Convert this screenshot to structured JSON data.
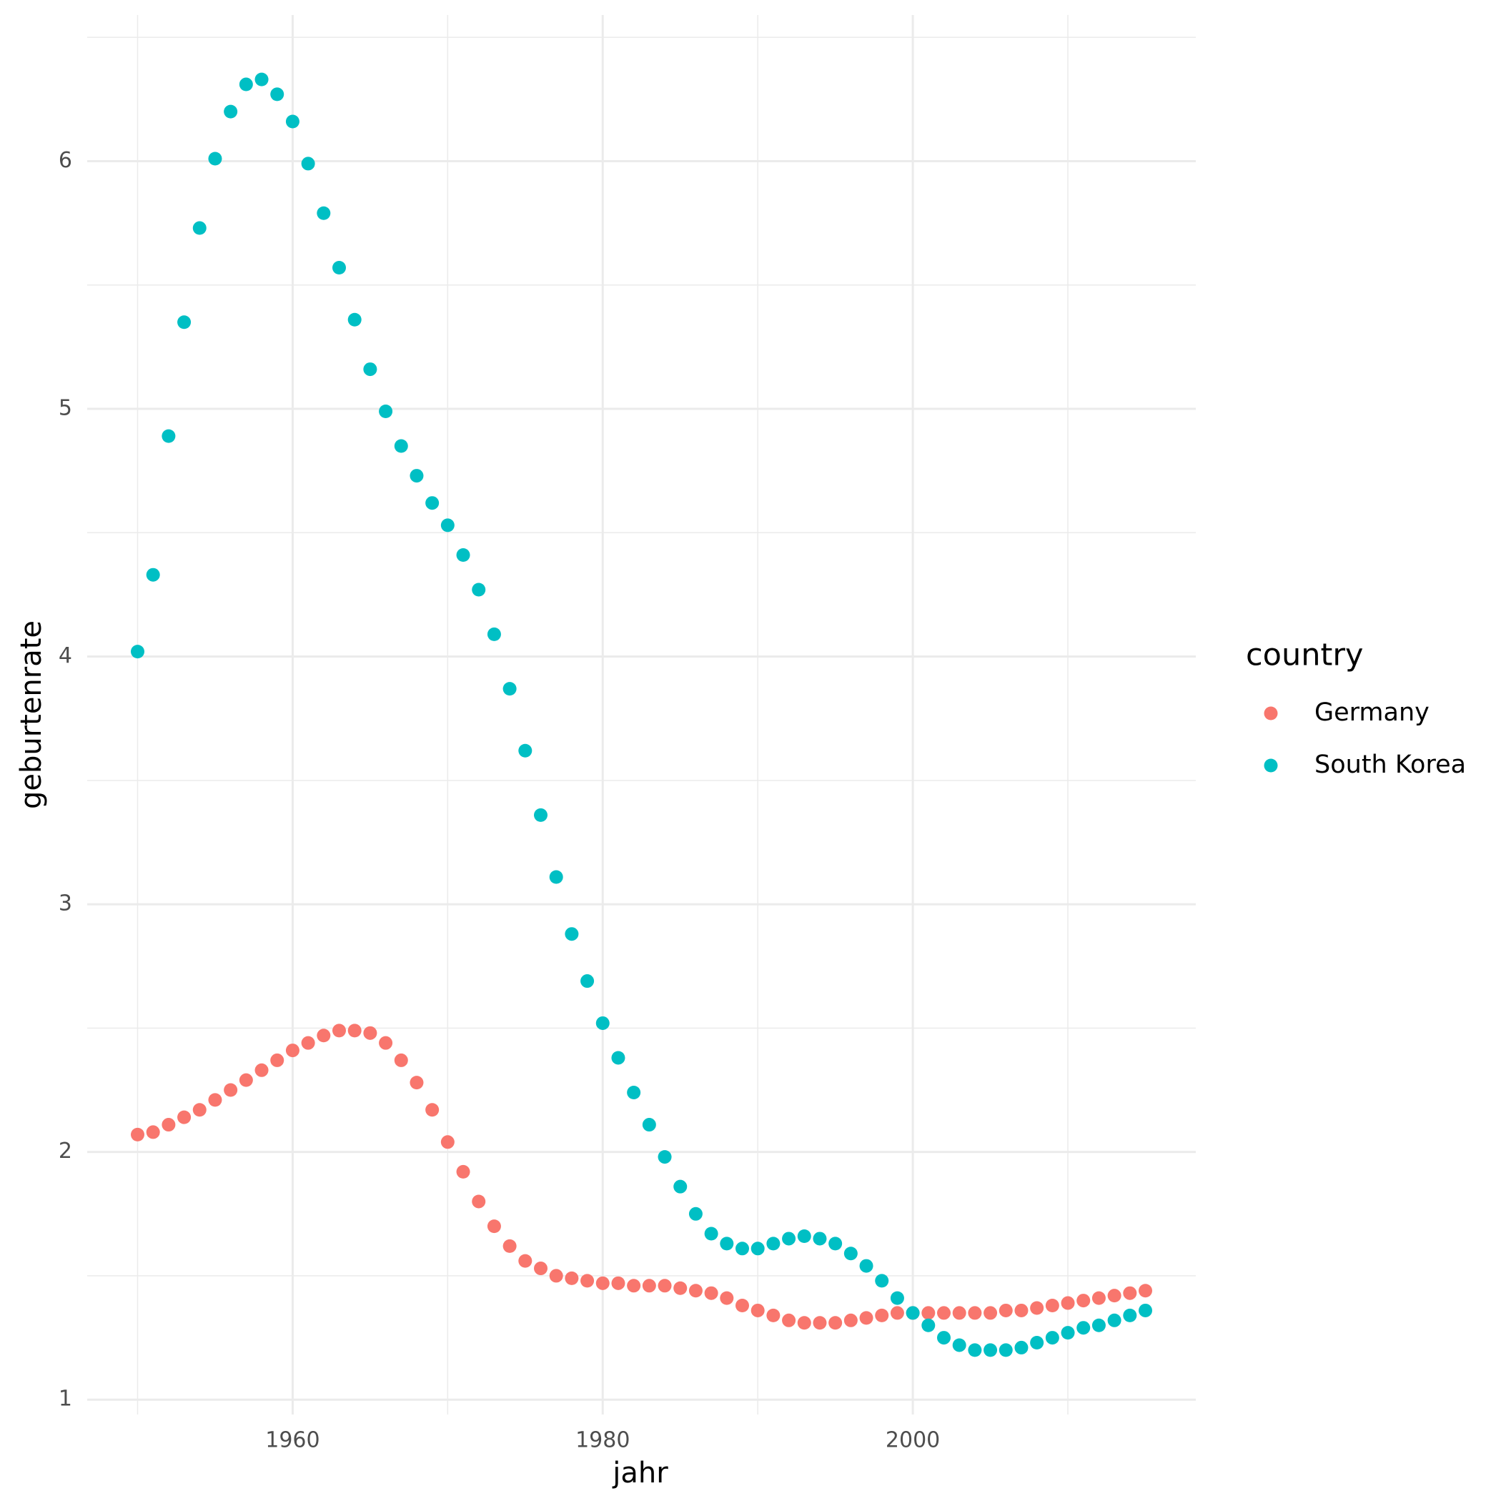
{
  "chart_data": {
    "type": "scatter",
    "x_label": "jahr",
    "y_label": "geburtenrate",
    "legend_title": "country",
    "legend_position": "right",
    "grid": true,
    "x": [
      1950,
      1951,
      1952,
      1953,
      1954,
      1955,
      1956,
      1957,
      1958,
      1959,
      1960,
      1961,
      1962,
      1963,
      1964,
      1965,
      1966,
      1967,
      1968,
      1969,
      1970,
      1971,
      1972,
      1973,
      1974,
      1975,
      1976,
      1977,
      1978,
      1979,
      1980,
      1981,
      1982,
      1983,
      1984,
      1985,
      1986,
      1987,
      1988,
      1989,
      1990,
      1991,
      1992,
      1993,
      1994,
      1995,
      1996,
      1997,
      1998,
      1999,
      2000,
      2001,
      2002,
      2003,
      2004,
      2005,
      2006,
      2007,
      2008,
      2009,
      2010,
      2011,
      2012,
      2013,
      2014,
      2015
    ],
    "series": [
      {
        "name": "Germany",
        "color": "#f8766d",
        "values": [
          2.07,
          2.08,
          2.11,
          2.14,
          2.17,
          2.21,
          2.25,
          2.29,
          2.33,
          2.37,
          2.41,
          2.44,
          2.47,
          2.49,
          2.49,
          2.48,
          2.44,
          2.37,
          2.28,
          2.17,
          2.04,
          1.92,
          1.8,
          1.7,
          1.62,
          1.56,
          1.53,
          1.5,
          1.49,
          1.48,
          1.47,
          1.47,
          1.46,
          1.46,
          1.46,
          1.45,
          1.44,
          1.43,
          1.41,
          1.38,
          1.36,
          1.34,
          1.32,
          1.31,
          1.31,
          1.31,
          1.32,
          1.33,
          1.34,
          1.35,
          1.35,
          1.35,
          1.35,
          1.35,
          1.35,
          1.35,
          1.36,
          1.36,
          1.37,
          1.38,
          1.39,
          1.4,
          1.41,
          1.42,
          1.43,
          1.44
        ]
      },
      {
        "name": "South Korea",
        "color": "#00bfc4",
        "values": [
          4.02,
          4.33,
          4.89,
          5.35,
          5.73,
          6.01,
          6.2,
          6.31,
          6.33,
          6.27,
          6.16,
          5.99,
          5.79,
          5.57,
          5.36,
          5.16,
          4.99,
          4.85,
          4.73,
          4.62,
          4.53,
          4.41,
          4.27,
          4.09,
          3.87,
          3.62,
          3.36,
          3.11,
          2.88,
          2.69,
          2.52,
          2.38,
          2.24,
          2.11,
          1.98,
          1.86,
          1.75,
          1.67,
          1.63,
          1.61,
          1.61,
          1.63,
          1.65,
          1.66,
          1.65,
          1.63,
          1.59,
          1.54,
          1.48,
          1.41,
          1.35,
          1.3,
          1.25,
          1.22,
          1.2,
          1.2,
          1.2,
          1.21,
          1.23,
          1.25,
          1.27,
          1.29,
          1.3,
          1.32,
          1.34,
          1.36
        ]
      }
    ],
    "xlim": [
      1946.75,
      2018.25
    ],
    "xticks": [
      1960,
      1980,
      2000
    ],
    "x_minor_grid": [
      1950,
      1970,
      1990,
      2010
    ],
    "ylim": [
      0.94,
      6.59
    ],
    "yticks": [
      1,
      2,
      3,
      4,
      5,
      6
    ],
    "y_minor_grid": [
      1.5,
      2.5,
      3.5,
      4.5,
      5.5,
      6.5
    ]
  }
}
